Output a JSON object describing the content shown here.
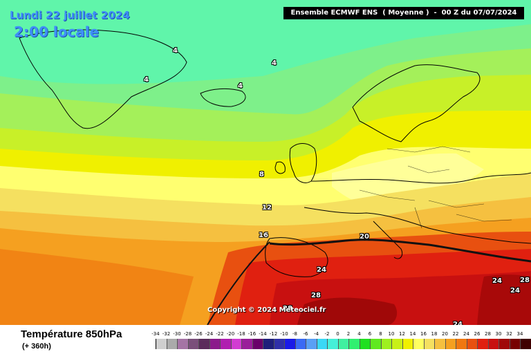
{
  "header": {
    "date": "Lundi 22 juillet 2024",
    "local_time": "2:00 locale",
    "model_info": "Ensemble ECMWF ENS  ( Moyenne )  -  00 Z du 07/07/2024"
  },
  "copyright": "Copyright © 2024 Meteociel.fr",
  "isotherm_labels": [
    "4",
    "4",
    "4",
    "4",
    "8",
    "12",
    "16",
    "20",
    "24",
    "28",
    "28",
    "24",
    "24",
    "28",
    "24"
  ],
  "footer": {
    "variable": "Température 850hPa",
    "lead_time": "(+ 360h)"
  },
  "legend": {
    "ticks": [
      "-34",
      "-32",
      "-30",
      "-28",
      "-26",
      "-24",
      "-22",
      "-20",
      "-18",
      "-16",
      "-14",
      "-12",
      "-10",
      "-8",
      "-6",
      "-4",
      "-2",
      "0",
      "2",
      "4",
      "6",
      "8",
      "10",
      "12",
      "14",
      "16",
      "18",
      "20",
      "22",
      "24",
      "26",
      "28",
      "30",
      "32",
      "34"
    ],
    "colors": [
      "#cfcfcf",
      "#aaaaaa",
      "#a574a5",
      "#7b4f7b",
      "#5b2b5b",
      "#8b1a8b",
      "#b01fb0",
      "#d23cd2",
      "#9a1e9a",
      "#6a006a",
      "#1f1f7a",
      "#3030a8",
      "#1a1ae8",
      "#3a6af5",
      "#5aa0f5",
      "#3ad8f5",
      "#45f0d8",
      "#40f0a0",
      "#30f070",
      "#20e020",
      "#60e820",
      "#9ef020",
      "#c8f018",
      "#f0f000",
      "#ffff60",
      "#f5e060",
      "#f5c040",
      "#f5a020",
      "#f07810",
      "#e85010",
      "#e02010",
      "#c81010",
      "#a00808",
      "#780000",
      "#400000"
    ]
  },
  "colors": {
    "field_cold": "#5ef5a6",
    "field_mild": "#8af07a",
    "field_warm": "#ffd400",
    "field_hot": "#e01010",
    "label_blue": "#3f8ff7"
  }
}
